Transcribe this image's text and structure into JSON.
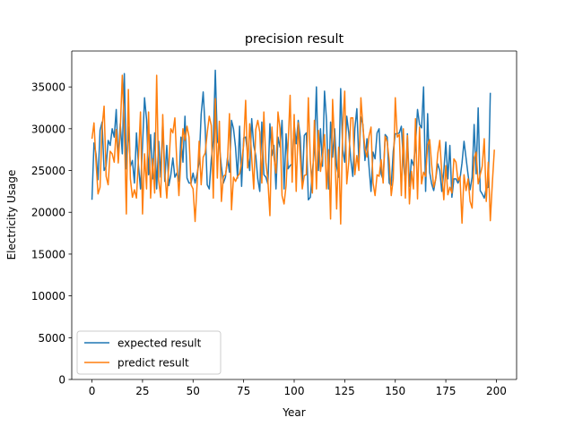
{
  "chart_data": {
    "type": "line",
    "title": "precision result",
    "xlabel": "Year",
    "ylabel": "Electricity Usage",
    "xlim": [
      -10,
      210
    ],
    "ylim": [
      0,
      39300
    ],
    "xticks": [
      0,
      25,
      50,
      75,
      100,
      125,
      150,
      175,
      200
    ],
    "yticks": [
      0,
      5000,
      10000,
      15000,
      20000,
      25000,
      30000,
      35000
    ],
    "grid": false,
    "legend_position": "lower-left",
    "series": [
      {
        "name": "expected result",
        "color": "#1f77b4",
        "x": [
          0,
          1,
          2,
          3,
          4,
          5,
          6,
          7,
          8,
          9,
          10,
          11,
          12,
          13,
          14,
          15,
          16,
          17,
          18,
          19,
          20,
          21,
          22,
          23,
          24,
          25,
          26,
          27,
          28,
          29,
          30,
          31,
          32,
          33,
          34,
          35,
          36,
          37,
          38,
          39,
          40,
          41,
          42,
          43,
          44,
          45,
          46,
          47,
          48,
          49,
          50,
          51,
          52,
          53,
          54,
          55,
          56,
          57,
          58,
          59,
          60,
          61,
          62,
          63,
          64,
          65,
          66,
          67,
          68,
          69,
          70,
          71,
          72,
          73,
          74,
          75,
          76,
          77,
          78,
          79,
          80,
          81,
          82,
          83,
          84,
          85,
          86,
          87,
          88,
          89,
          90,
          91,
          92,
          93,
          94,
          95,
          96,
          97,
          98,
          99,
          100,
          101,
          102,
          103,
          104,
          105,
          106,
          107,
          108,
          109,
          110,
          111,
          112,
          113,
          114,
          115,
          116,
          117,
          118,
          119,
          120,
          121,
          122,
          123,
          124,
          125,
          126,
          127,
          128,
          129,
          130,
          131,
          132,
          133,
          134,
          135,
          136,
          137,
          138,
          139,
          140,
          141,
          142,
          143,
          144,
          145,
          146,
          147,
          148,
          149,
          150,
          151,
          152,
          153,
          154,
          155,
          156,
          157,
          158,
          159,
          160,
          161,
          162,
          163,
          164,
          165,
          166,
          167,
          168,
          169,
          170,
          171,
          172,
          173,
          174,
          175,
          176,
          177,
          178,
          179,
          180,
          181,
          182,
          183,
          184,
          185,
          186,
          187,
          188,
          189,
          190,
          191,
          192,
          193,
          194,
          195,
          196,
          197,
          198,
          199
        ],
        "values": [
          21500,
          28300,
          27000,
          23900,
          29800,
          30800,
          25000,
          25500,
          28600,
          28000,
          30000,
          29000,
          32300,
          26300,
          30600,
          27000,
          36600,
          25200,
          30200,
          25500,
          26200,
          23500,
          29500,
          25600,
          22800,
          28000,
          33700,
          31100,
          24500,
          29300,
          24000,
          29500,
          22800,
          28500,
          24200,
          31000,
          23700,
          28000,
          23200,
          24500,
          26500,
          24200,
          24700,
          23700,
          29000,
          26000,
          31500,
          24100,
          23500,
          23500,
          24700,
          23500,
          24600,
          26000,
          31700,
          34400,
          30000,
          23300,
          22800,
          26300,
          28500,
          37000,
          28500,
          28000,
          25500,
          23500,
          24200,
          26500,
          24800,
          31000,
          30000,
          27800,
          24100,
          30300,
          23100,
          28900,
          29000,
          27000,
          25000,
          31200,
          28000,
          26800,
          24000,
          22500,
          30800,
          24500,
          24200,
          23400,
          30600,
          26800,
          28000,
          22800,
          29000,
          27800,
          31000,
          22800,
          29400,
          25200,
          25600,
          25800,
          30500,
          28200,
          31000,
          29000,
          23300,
          29200,
          29500,
          21500,
          21800,
          24800,
          27500,
          35000,
          25000,
          30000,
          25500,
          34500,
          31000,
          22800,
          30800,
          26600,
          30000,
          25500,
          24200,
          34800,
          27500,
          26000,
          31500,
          29500,
          26300,
          24300,
          30000,
          32400,
          26100,
          31400,
          30500,
          26200,
          28800,
          25500,
          22500,
          27200,
          26400,
          29500,
          30000,
          24600,
          23900,
          29300,
          29000,
          23500,
          23200,
          27300,
          29400,
          29400,
          29500,
          30300,
          26200,
          23300,
          29400,
          23100,
          26300,
          25600,
          28000,
          32300,
          30500,
          30100,
          35000,
          22500,
          31800,
          24800,
          23400,
          22600,
          24000,
          25800,
          25000,
          22500,
          24900,
          28400,
          24000,
          28000,
          21800,
          24000,
          24000,
          23500,
          24000,
          25900,
          28500,
          26500,
          24500,
          22700,
          24200,
          30500,
          24600,
          32500,
          22600,
          22200,
          21700,
          22900,
          23000,
          34300,
          null,
          null
        ]
      },
      {
        "name": "predict result",
        "color": "#ff7f0e",
        "x": [
          0,
          1,
          2,
          3,
          4,
          5,
          6,
          7,
          8,
          9,
          10,
          11,
          12,
          13,
          14,
          15,
          16,
          17,
          18,
          19,
          20,
          21,
          22,
          23,
          24,
          25,
          26,
          27,
          28,
          29,
          30,
          31,
          32,
          33,
          34,
          35,
          36,
          37,
          38,
          39,
          40,
          41,
          42,
          43,
          44,
          45,
          46,
          47,
          48,
          49,
          50,
          51,
          52,
          53,
          54,
          55,
          56,
          57,
          58,
          59,
          60,
          61,
          62,
          63,
          64,
          65,
          66,
          67,
          68,
          69,
          70,
          71,
          72,
          73,
          74,
          75,
          76,
          77,
          78,
          79,
          80,
          81,
          82,
          83,
          84,
          85,
          86,
          87,
          88,
          89,
          90,
          91,
          92,
          93,
          94,
          95,
          96,
          97,
          98,
          99,
          100,
          101,
          102,
          103,
          104,
          105,
          106,
          107,
          108,
          109,
          110,
          111,
          112,
          113,
          114,
          115,
          116,
          117,
          118,
          119,
          120,
          121,
          122,
          123,
          124,
          125,
          126,
          127,
          128,
          129,
          130,
          131,
          132,
          133,
          134,
          135,
          136,
          137,
          138,
          139,
          140,
          141,
          142,
          143,
          144,
          145,
          146,
          147,
          148,
          149,
          150,
          151,
          152,
          153,
          154,
          155,
          156,
          157,
          158,
          159,
          160,
          161,
          162,
          163,
          164,
          165,
          166,
          167,
          168,
          169,
          170,
          171,
          172,
          173,
          174,
          175,
          176,
          177,
          178,
          179,
          180,
          181,
          182,
          183,
          184,
          185,
          186,
          187,
          188,
          189,
          190,
          191,
          192,
          193,
          194,
          195,
          196,
          197,
          198,
          199
        ],
        "values": [
          28800,
          30700,
          26000,
          22200,
          23000,
          30200,
          32700,
          24300,
          23300,
          27300,
          27000,
          26000,
          29900,
          25900,
          30000,
          36400,
          30000,
          19800,
          34700,
          24000,
          21800,
          22700,
          21700,
          26500,
          32000,
          19800,
          27000,
          22800,
          32000,
          21700,
          26400,
          22300,
          36400,
          23800,
          21800,
          31700,
          24800,
          21700,
          25600,
          30000,
          29500,
          31300,
          25800,
          22000,
          26400,
          30000,
          28600,
          30300,
          29000,
          23300,
          22800,
          18900,
          23400,
          28500,
          23300,
          26600,
          27100,
          29500,
          31500,
          30400,
          21700,
          33600,
          24100,
          30900,
          21300,
          24300,
          24500,
          26000,
          31800,
          20300,
          24200,
          23700,
          24300,
          24600,
          26000,
          28000,
          33400,
          25300,
          30600,
          26500,
          22800,
          29900,
          31000,
          29600,
          23500,
          32000,
          26000,
          23800,
          19600,
          30200,
          26600,
          24700,
          32000,
          30000,
          22000,
          21000,
          23200,
          28200,
          34000,
          23600,
          31700,
          22500,
          30700,
          26600,
          22800,
          24400,
          24500,
          33700,
          26200,
          22300,
          31000,
          22800,
          29800,
          24900,
          26700,
          29300,
          22800,
          27500,
          19200,
          33500,
          28000,
          20400,
          27800,
          18600,
          30200,
          34500,
          23400,
          26000,
          31300,
          31300,
          24500,
          26800,
          25000,
          33700,
          30200,
          27600,
          26600,
          29100,
          30200,
          23500,
          22000,
          24500,
          24300,
          26300,
          23500,
          29100,
          28400,
          26200,
          22000,
          24000,
          33700,
          29000,
          29300,
          22000,
          30000,
          21700,
          29200,
          21000,
          24900,
          22800,
          31200,
          21600,
          30200,
          23400,
          24800,
          24300,
          28000,
          28700,
          25700,
          23000,
          24000,
          27000,
          28600,
          24700,
          21500,
          25600,
          22100,
          23000,
          22300,
          26400,
          26000,
          23800,
          24300,
          18700,
          24500,
          22600,
          24000,
          21300,
          20500,
          26500,
          27200,
          23400,
          24500,
          25500,
          28800,
          21300,
          26000,
          19000,
          23500,
          27500
        ]
      }
    ]
  }
}
